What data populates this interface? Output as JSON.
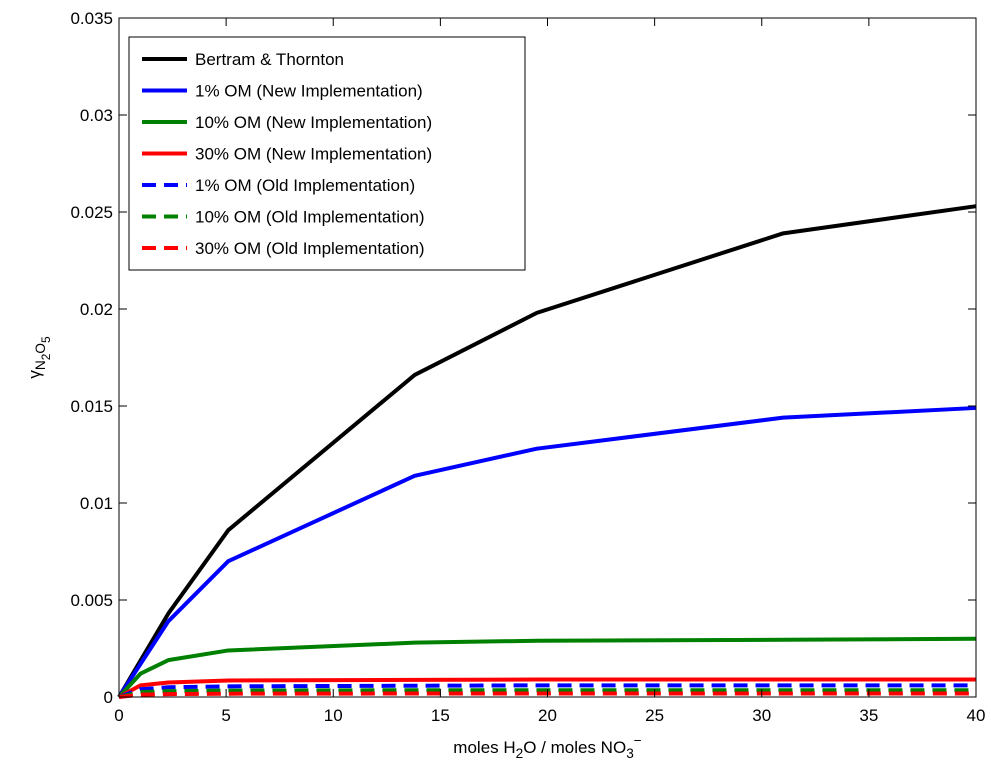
{
  "chart_data": {
    "type": "line",
    "xlabel": {
      "parts": [
        {
          "text": "moles H",
          "style": "normal"
        },
        {
          "text": "2",
          "style": "sub"
        },
        {
          "text": "O / moles NO",
          "style": "normal"
        },
        {
          "text": "3",
          "style": "sub"
        },
        {
          "text": "−",
          "style": "sup"
        }
      ]
    },
    "ylabel": {
      "parts": [
        {
          "text": "γ",
          "style": "normal"
        },
        {
          "text": "N",
          "style": "sub"
        },
        {
          "text": "2",
          "style": "subsub"
        },
        {
          "text": "O",
          "style": "sub"
        },
        {
          "text": "5",
          "style": "subsub"
        }
      ]
    },
    "xlim": [
      0,
      40
    ],
    "ylim": [
      0,
      0.035
    ],
    "xticks": [
      0,
      5,
      10,
      15,
      20,
      25,
      30,
      35,
      40
    ],
    "xtick_labels": [
      "0",
      "5",
      "10",
      "15",
      "20",
      "25",
      "30",
      "35",
      "40"
    ],
    "yticks": [
      0,
      0.005,
      0.01,
      0.015,
      0.02,
      0.025,
      0.03,
      0.035
    ],
    "ytick_labels": [
      "0",
      "0.005",
      "0.01",
      "0.015",
      "0.02",
      "0.025",
      "0.03",
      "0.035"
    ],
    "grid": false,
    "legend_position": "top-left",
    "series": [
      {
        "name": "Bertram & Thornton",
        "color": "#000000",
        "dash": "solid",
        "x": [
          0,
          2.3,
          5.1,
          13.8,
          19.5,
          31,
          40
        ],
        "y": [
          0,
          0.0043,
          0.0086,
          0.0166,
          0.0198,
          0.0239,
          0.0253
        ]
      },
      {
        "name": "1% OM (New Implementation)",
        "color": "#0000ff",
        "dash": "solid",
        "x": [
          0,
          2.3,
          5.1,
          13.8,
          19.5,
          31,
          40
        ],
        "y": [
          0,
          0.0039,
          0.007,
          0.0114,
          0.0128,
          0.0144,
          0.0149
        ]
      },
      {
        "name": "10% OM (New Implementation)",
        "color": "#008000",
        "dash": "solid",
        "x": [
          0,
          1,
          2.3,
          5.1,
          13.8,
          19.5,
          31,
          40
        ],
        "y": [
          0,
          0.0012,
          0.0019,
          0.0024,
          0.0028,
          0.0029,
          0.00295,
          0.003
        ]
      },
      {
        "name": "30% OM (New Implementation)",
        "color": "#ff0000",
        "dash": "solid",
        "x": [
          0,
          1,
          2.3,
          5.1,
          13.8,
          19.5,
          31,
          40
        ],
        "y": [
          0,
          0.0006,
          0.00075,
          0.00085,
          0.00088,
          0.0009,
          0.0009,
          0.0009
        ]
      },
      {
        "name": "1% OM (Old Implementation)",
        "color": "#0000ff",
        "dash": "dashed",
        "x": [
          0,
          1,
          2.3,
          5.1,
          13.8,
          19.5,
          31,
          40
        ],
        "y": [
          0,
          0.0004,
          0.0005,
          0.00055,
          0.00058,
          0.0006,
          0.0006,
          0.0006
        ]
      },
      {
        "name": "10% OM (Old Implementation)",
        "color": "#008000",
        "dash": "dashed",
        "x": [
          0,
          1,
          2.3,
          5.1,
          13.8,
          19.5,
          31,
          40
        ],
        "y": [
          0,
          0.00025,
          0.0003,
          0.00033,
          0.00035,
          0.00035,
          0.00035,
          0.00035
        ]
      },
      {
        "name": "30% OM (Old Implementation)",
        "color": "#ff0000",
        "dash": "dashed",
        "x": [
          0,
          1,
          2.3,
          5.1,
          13.8,
          19.5,
          31,
          40
        ],
        "y": [
          0,
          0.00012,
          0.00015,
          0.00017,
          0.00018,
          0.00018,
          0.00018,
          0.00018
        ]
      }
    ]
  }
}
